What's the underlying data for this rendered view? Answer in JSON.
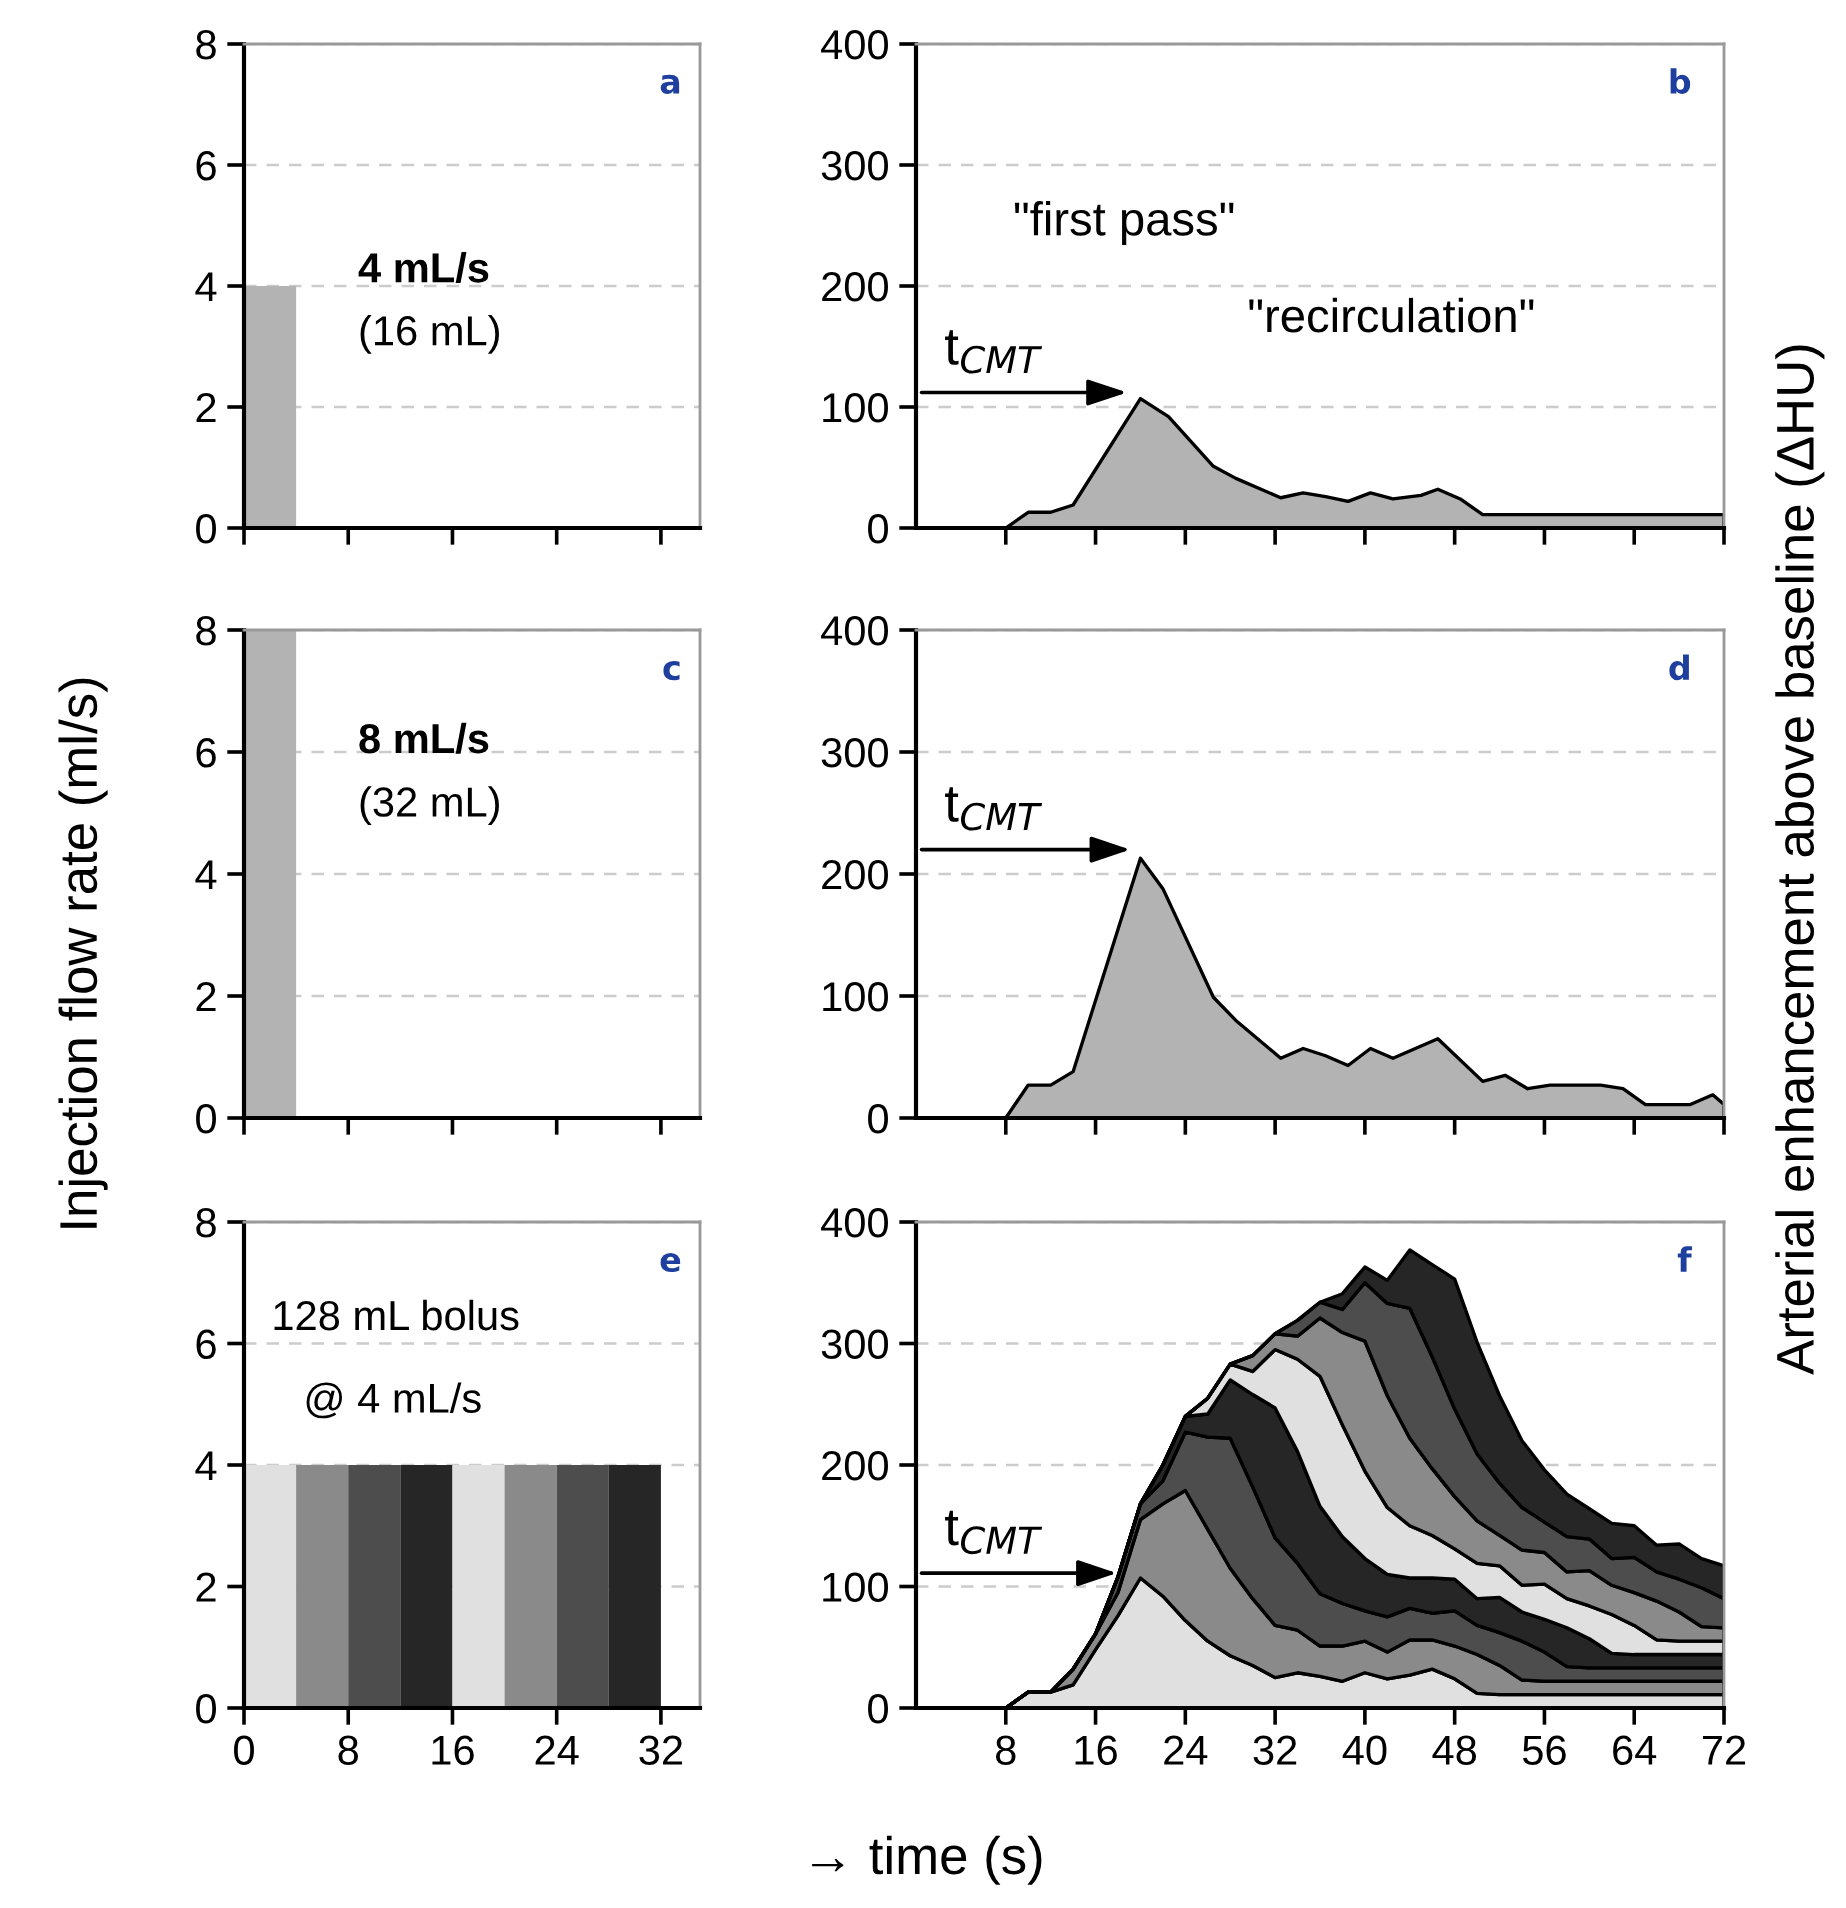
{
  "chart_data": [
    {
      "type": "histogram",
      "title": "a",
      "bins": [
        0,
        4
      ],
      "values": [
        4
      ],
      "color": "#b3b3b3",
      "xlim": [
        0,
        35
      ],
      "xticks": [
        0,
        8,
        16,
        24,
        32
      ],
      "ylim": [
        0,
        8
      ],
      "yticks": [
        0,
        2,
        4,
        6,
        8
      ],
      "grid": "y",
      "tick_labels": "y",
      "annotations": [
        "4 mL/s",
        "(16 mL)"
      ]
    },
    {
      "type": "area",
      "title": "b",
      "x": [
        8,
        10,
        12,
        14,
        20,
        22.5,
        26.5,
        28.5,
        32.5,
        34.5,
        36.5,
        38.5,
        40.5,
        42.5,
        45,
        46.5,
        48.5,
        50.5,
        72
      ],
      "series": [
        {
          "color": "#b3b3b3",
          "values": [
            0,
            13,
            13,
            19,
            107,
            92,
            51,
            41,
            25,
            29,
            26,
            22,
            29,
            24,
            27,
            32,
            24,
            11,
            11
          ]
        }
      ],
      "xlim": [
        0,
        72
      ],
      "xticks": [
        8,
        16,
        24,
        32,
        40,
        48,
        56,
        64,
        72
      ],
      "ylim": [
        0,
        400
      ],
      "yticks": [
        0,
        100,
        200,
        300,
        400
      ],
      "grid": "y",
      "tick_labels": "y",
      "annotations": [
        {
          "text": "t$_{CMT}$",
          "x": 19.3,
          "y": 112
        },
        "\"first pass\"",
        "\"recirculation\""
      ]
    },
    {
      "type": "histogram",
      "title": "c",
      "ylabel": "Injection flow rate (ml/s)",
      "bins": [
        0,
        4
      ],
      "values": [
        8
      ],
      "color": "#b3b3b3",
      "xlim": [
        0,
        35
      ],
      "xticks": [
        0,
        8,
        16,
        24,
        32
      ],
      "ylim": [
        0,
        8
      ],
      "yticks": [
        0,
        2,
        4,
        6,
        8
      ],
      "grid": "y",
      "tick_labels": "y",
      "annotations": [
        "8 mL/s",
        "(32 mL)"
      ]
    },
    {
      "type": "area",
      "title": "d",
      "ylabel": "Arterial enhancement above baseline (ΔHU)",
      "x": [
        8,
        10,
        12,
        14,
        20,
        22,
        26.5,
        28.5,
        32.5,
        34.5,
        36.5,
        38.5,
        40.5,
        42.5,
        46.5,
        50.5,
        52.5,
        54.5,
        56.5,
        61,
        63,
        65,
        69,
        71,
        72
      ],
      "series": [
        {
          "color": "#b3b3b3",
          "values": [
            0,
            27,
            27,
            38,
            213,
            188,
            99,
            80,
            49,
            57,
            51,
            43,
            57,
            49,
            65,
            30,
            35,
            24,
            27,
            27,
            24,
            11,
            11,
            19,
            11
          ]
        }
      ],
      "xlim": [
        0,
        72
      ],
      "xticks": [
        8,
        16,
        24,
        32,
        40,
        48,
        56,
        64,
        72
      ],
      "ylim": [
        0,
        400
      ],
      "yticks": [
        0,
        100,
        200,
        300,
        400
      ],
      "grid": "y",
      "tick_labels": "y",
      "annotations": [
        {
          "text": "t$_{CMT}$",
          "x": 19.6,
          "y": 220
        }
      ]
    },
    {
      "type": "histogram",
      "title": "e",
      "xlabel": "→ time (s)",
      "bins": [
        0,
        4,
        8,
        12,
        16,
        20,
        24,
        28,
        32
      ],
      "values": [
        4,
        4,
        4,
        4,
        4,
        4,
        4,
        4
      ],
      "colors": [
        "#e0e0e0",
        "#8a8a8a",
        "#4d4d4d",
        "#262626",
        "#e0e0e0",
        "#8a8a8a",
        "#4d4d4d",
        "#262626"
      ],
      "xlim": [
        0,
        35
      ],
      "xticks": [
        0,
        8,
        16,
        24,
        32
      ],
      "ylim": [
        0,
        8
      ],
      "yticks": [
        0,
        2,
        4,
        6,
        8
      ],
      "grid": "y",
      "annotations": [
        "128 mL bolus",
        "@ 4 mL/s"
      ]
    },
    {
      "type": "area",
      "title": "f",
      "stacked": true,
      "x": [
        8,
        10,
        12,
        14,
        16,
        18,
        20,
        22,
        24,
        26,
        28,
        30,
        32,
        34,
        36,
        38,
        40,
        42,
        44,
        46,
        48,
        50,
        52,
        54,
        56,
        58,
        60,
        62,
        64,
        66,
        68,
        70,
        72
      ],
      "series": [
        {
          "color": "#e0e0e0",
          "values": [
            0,
            13,
            13,
            19,
            48,
            76,
            107,
            92,
            72,
            55,
            43,
            35,
            25,
            29,
            26,
            22,
            29,
            24,
            27,
            32,
            24,
            12,
            11,
            11,
            11,
            11,
            11,
            11,
            11,
            11,
            11,
            11,
            11
          ]
        },
        {
          "color": "#8a8a8a",
          "values": [
            0,
            0,
            0,
            13,
            13,
            19,
            48,
            76,
            107,
            92,
            72,
            55,
            43,
            35,
            25,
            29,
            26,
            22,
            29,
            24,
            27,
            32,
            24,
            12,
            11,
            11,
            11,
            11,
            11,
            11,
            11,
            11,
            11
          ]
        },
        {
          "color": "#4d4d4d",
          "values": [
            0,
            0,
            0,
            0,
            0,
            13,
            13,
            19,
            48,
            76,
            107,
            92,
            72,
            55,
            43,
            35,
            25,
            29,
            26,
            22,
            29,
            24,
            27,
            32,
            24,
            12,
            11,
            11,
            11,
            11,
            11,
            11,
            11
          ]
        },
        {
          "color": "#262626",
          "values": [
            0,
            0,
            0,
            0,
            0,
            0,
            0,
            13,
            13,
            19,
            48,
            76,
            107,
            92,
            72,
            55,
            43,
            35,
            25,
            29,
            26,
            22,
            29,
            24,
            27,
            32,
            24,
            12,
            11,
            11,
            11,
            11,
            11
          ]
        },
        {
          "color": "#e0e0e0",
          "values": [
            0,
            0,
            0,
            0,
            0,
            0,
            0,
            0,
            0,
            13,
            13,
            19,
            48,
            76,
            107,
            92,
            72,
            55,
            43,
            35,
            25,
            29,
            26,
            22,
            29,
            24,
            27,
            32,
            24,
            12,
            11,
            11,
            11
          ]
        },
        {
          "color": "#8a8a8a",
          "values": [
            0,
            0,
            0,
            0,
            0,
            0,
            0,
            0,
            0,
            0,
            0,
            13,
            13,
            19,
            48,
            76,
            107,
            92,
            72,
            55,
            43,
            35,
            25,
            29,
            26,
            22,
            29,
            24,
            27,
            32,
            24,
            12,
            11
          ]
        },
        {
          "color": "#4d4d4d",
          "values": [
            0,
            0,
            0,
            0,
            0,
            0,
            0,
            0,
            0,
            0,
            0,
            0,
            0,
            13,
            13,
            19,
            48,
            76,
            107,
            92,
            72,
            55,
            43,
            35,
            25,
            29,
            26,
            22,
            29,
            24,
            27,
            32,
            24
          ]
        },
        {
          "color": "#262626",
          "values": [
            0,
            0,
            0,
            0,
            0,
            0,
            0,
            0,
            0,
            0,
            0,
            0,
            0,
            0,
            0,
            13,
            13,
            19,
            48,
            76,
            107,
            92,
            72,
            55,
            43,
            35,
            25,
            29,
            26,
            22,
            29,
            24,
            27
          ]
        }
      ],
      "xlim": [
        0,
        72
      ],
      "xticks": [
        8,
        16,
        24,
        32,
        40,
        48,
        56,
        64,
        72
      ],
      "ylim": [
        0,
        400
      ],
      "yticks": [
        0,
        100,
        200,
        300,
        400
      ],
      "grid": "y",
      "annotations": [
        {
          "text": "t$_{CMT}$",
          "x": 18.4,
          "y": 111
        }
      ]
    }
  ]
}
